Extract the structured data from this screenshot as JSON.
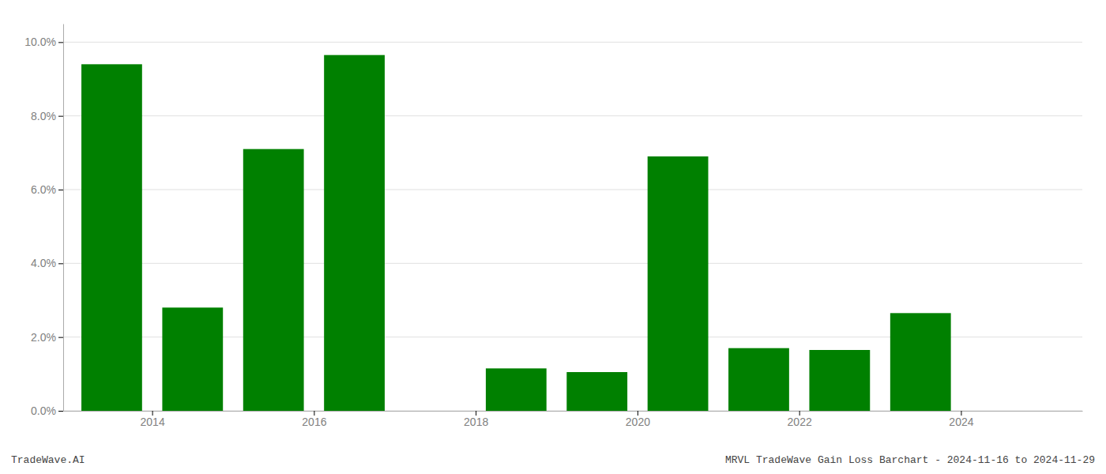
{
  "chart_data": {
    "type": "bar",
    "x": [
      2013,
      2014,
      2015,
      2016,
      2017,
      2018,
      2019,
      2020,
      2021,
      2022,
      2023,
      2024
    ],
    "values": [
      0.094,
      0.028,
      0.071,
      0.0965,
      0.0,
      0.0115,
      0.0105,
      0.069,
      0.017,
      0.0165,
      0.0265,
      0.0
    ],
    "color": "#008000",
    "xlim": [
      2012.4,
      2025.0
    ],
    "xticks": [
      {
        "value": 2013.5,
        "label": "2014"
      },
      {
        "value": 2015.5,
        "label": "2016"
      },
      {
        "value": 2017.5,
        "label": "2018"
      },
      {
        "value": 2019.5,
        "label": "2020"
      },
      {
        "value": 2021.5,
        "label": "2022"
      },
      {
        "value": 2023.5,
        "label": "2024"
      }
    ],
    "ylim": [
      0,
      0.105
    ],
    "yticks": [
      {
        "value": 0.0,
        "label": "0.0%"
      },
      {
        "value": 0.02,
        "label": "2.0%"
      },
      {
        "value": 0.04,
        "label": "4.0%"
      },
      {
        "value": 0.06,
        "label": "6.0%"
      },
      {
        "value": 0.08,
        "label": "8.0%"
      },
      {
        "value": 0.1,
        "label": "10.0%"
      }
    ],
    "grid": true,
    "annotations": [
      "TradeWave.AI",
      "MRVL TradeWave Gain Loss Barchart - 2024-11-16 to 2024-11-29"
    ]
  }
}
